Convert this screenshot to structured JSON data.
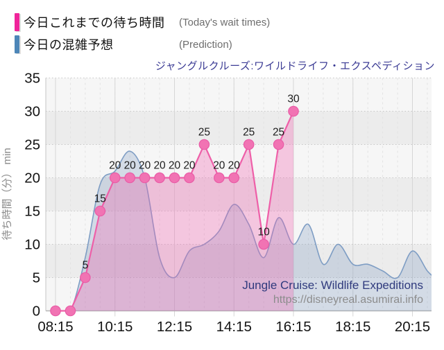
{
  "legend": {
    "items": [
      {
        "label": "今日これまでの待ち時間",
        "sub": "(Today's wait times)",
        "color": "#f0249a"
      },
      {
        "label": "今日の混雑予想",
        "sub": "(Prediction)",
        "color": "#4d86b8"
      }
    ]
  },
  "title": {
    "text": "ジャングルクルーズ:ワイルドライフ・エクスペディション",
    "color": "#3b3b94"
  },
  "watermark": {
    "line1": "Jungle Cruise: Wildlife Expeditions",
    "line2": "https://disneyreal.asumirai.info",
    "color_line1": "#2f3a7d",
    "color_line2": "#8c8c8c"
  },
  "chart_data": {
    "type": "area",
    "title": "ジャングルクルーズ:ワイルドライフ・エクスペディション",
    "xlabel": "",
    "ylabel": "待ち時間（分） min",
    "ylim": [
      0,
      35
    ],
    "yticks": [
      0,
      5,
      10,
      15,
      20,
      25,
      30,
      35
    ],
    "x_tick_labels": [
      "08:15",
      "10:15",
      "12:15",
      "14:15",
      "16:15",
      "18:15",
      "20:15"
    ],
    "grid": true,
    "legend_position": "top-left",
    "style": {
      "band_light": "#f6f6f6",
      "band_dark": "#ececec",
      "grid_color": "#c6c6c6",
      "minor_grid_color": "#e2e2e2",
      "tick_label_color": "#141414",
      "axis_label_color": "#8a8a8a",
      "point_label_color": "#1c1c1c"
    },
    "series": [
      {
        "name": "今日の混雑予想 (Prediction)",
        "type": "area-smooth",
        "line_color": "#7e9dc4",
        "fill_color": "rgba(122,152,192,0.28)",
        "x": [
          "08:15",
          "08:45",
          "09:15",
          "09:45",
          "10:15",
          "10:45",
          "11:15",
          "11:45",
          "12:15",
          "12:45",
          "13:15",
          "13:45",
          "14:15",
          "14:45",
          "15:15",
          "15:45",
          "16:15",
          "16:45",
          "17:15",
          "17:45",
          "18:15",
          "18:45",
          "19:15",
          "19:45",
          "20:15",
          "20:45",
          "21:00"
        ],
        "values": [
          0,
          0,
          8,
          19,
          21,
          24,
          20,
          8,
          5,
          9,
          10,
          12,
          16,
          13,
          8,
          14,
          10,
          13,
          7,
          10,
          7,
          7,
          6,
          5,
          9,
          6,
          5
        ]
      },
      {
        "name": "今日これまでの待ち時間 (Today's wait times)",
        "type": "area-line",
        "line_color": "#ee5fa8",
        "fill_color": "rgba(240,100,175,0.33)",
        "marker_fill": "#f173b3",
        "marker_stroke": "#e95ba6",
        "x": [
          "08:15",
          "08:45",
          "09:15",
          "09:45",
          "10:15",
          "10:45",
          "11:15",
          "11:45",
          "12:15",
          "12:45",
          "13:15",
          "13:45",
          "14:15",
          "14:45",
          "15:15",
          "15:45",
          "16:15"
        ],
        "values": [
          0,
          0,
          5,
          15,
          20,
          20,
          20,
          20,
          20,
          20,
          25,
          20,
          20,
          25,
          10,
          25,
          30
        ],
        "point_labels": [
          "",
          "",
          "5",
          "15",
          "20",
          "20",
          "20",
          "20",
          "20",
          "20",
          "25",
          "20",
          "20",
          "25",
          "10",
          "25",
          "30"
        ]
      }
    ]
  }
}
